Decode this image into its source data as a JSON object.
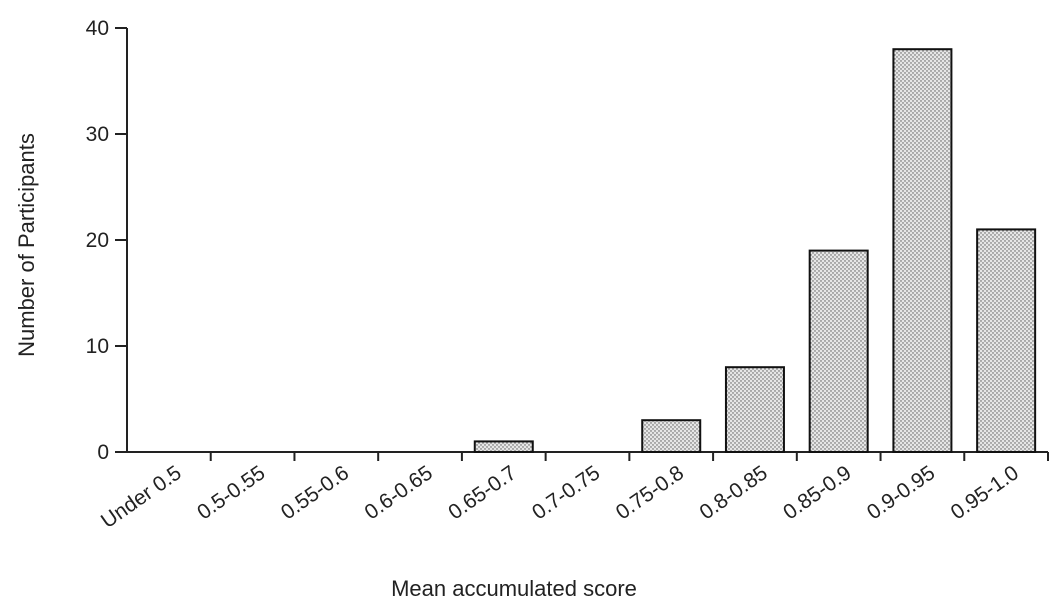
{
  "chart_data": {
    "type": "bar",
    "title": "",
    "xlabel": "Mean accumulated score",
    "ylabel": "Number of Participants",
    "categories": [
      "Under 0.5",
      "0.5-0.55",
      "0.55-0.6",
      "0.6-0.65",
      "0.65-0.7",
      "0.7-0.75",
      "0.75-0.8",
      "0.8-0.85",
      "0.85-0.9",
      "0.9-0.95",
      "0.95-1.0"
    ],
    "values": [
      0,
      0,
      0,
      0,
      1,
      0,
      3,
      8,
      19,
      38,
      21
    ],
    "ylim": [
      0,
      40
    ],
    "yticks": [
      0,
      10,
      20,
      30,
      40
    ],
    "grid": false,
    "legend": "none",
    "bar_fill": "#d8d8d8",
    "stroke_color": "#111111"
  }
}
